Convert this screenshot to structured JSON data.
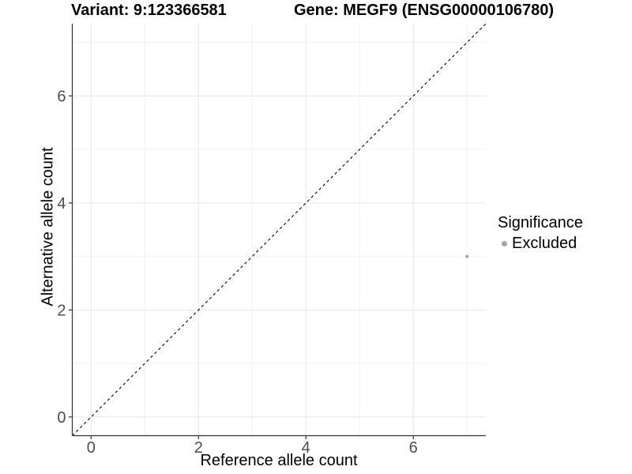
{
  "titles": {
    "variant": "Variant: 9:123366581",
    "gene": "Gene: MEGF9 (ENSG00000106780)"
  },
  "legend": {
    "title": "Significance",
    "items": [
      {
        "label": "Excluded",
        "color": "#a6a6a6",
        "marker": "circle-icon"
      }
    ]
  },
  "chart_data": {
    "type": "scatter",
    "title": "Variant: 9:123366581 — Gene: MEGF9 (ENSG00000106780)",
    "xlabel": "Reference allele count",
    "ylabel": "Alternative allele count",
    "xlim": [
      -0.35,
      7.35
    ],
    "ylim": [
      -0.35,
      7.35
    ],
    "x_ticks": [
      0,
      2,
      4,
      6
    ],
    "y_ticks": [
      0,
      2,
      4,
      6
    ],
    "x_minor_gridlines": [
      1,
      3,
      5,
      7
    ],
    "y_minor_gridlines": [
      1,
      3,
      5,
      7
    ],
    "grid": true,
    "legend_position": "right",
    "series": [
      {
        "name": "Excluded",
        "color": "#a6a6a6",
        "point_radius": 2.1,
        "points": [
          [
            7,
            3
          ]
        ]
      }
    ],
    "reference_line": {
      "kind": "identity",
      "slope": 1,
      "intercept": 0,
      "style": "dashed",
      "color": "#000000"
    }
  },
  "style": {
    "grid_major_color": "#e7e7e7",
    "grid_minor_color": "#f2f2f2",
    "axis_line_color": "#333333",
    "tick_color": "#333333",
    "tick_label_color": "#4d4d4d"
  }
}
